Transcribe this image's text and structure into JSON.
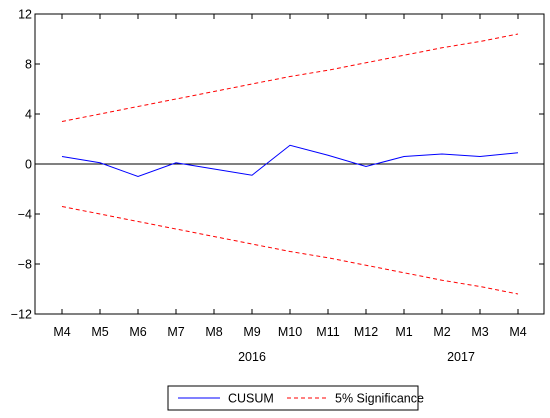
{
  "chart_data": {
    "type": "line",
    "x": [
      "M4",
      "M5",
      "M6",
      "M7",
      "M8",
      "M9",
      "M10",
      "M11",
      "M12",
      "M1",
      "M2",
      "M3",
      "M4"
    ],
    "year_labels": [
      {
        "label": "2016",
        "at_index": 5
      },
      {
        "label": "2017",
        "at_index": 10.5
      }
    ],
    "yticks": [
      12,
      8,
      4,
      0,
      -4,
      -8,
      -12
    ],
    "ylim": [
      -12,
      12
    ],
    "series": [
      {
        "name": "CUSUM",
        "color": "#0000ff",
        "dash": "solid",
        "values": [
          0.6,
          0.1,
          -1.0,
          0.1,
          -0.4,
          -0.9,
          1.5,
          0.7,
          -0.2,
          0.6,
          0.8,
          0.6,
          0.9
        ]
      },
      {
        "name": "5% Significance",
        "color": "#ff0000",
        "dash": "dashed",
        "values": [
          3.4,
          4.0,
          4.6,
          5.2,
          5.8,
          6.4,
          7.0,
          7.5,
          8.1,
          8.7,
          9.3,
          9.8,
          10.4
        ]
      },
      {
        "name": "",
        "color": "#ff0000",
        "dash": "dashed",
        "values": [
          -3.4,
          -4.0,
          -4.6,
          -5.2,
          -5.8,
          -6.4,
          -7.0,
          -7.5,
          -8.1,
          -8.7,
          -9.3,
          -9.8,
          -10.4
        ]
      }
    ],
    "zero_line": true,
    "grid": false,
    "legend": {
      "placement": "bottom-center",
      "entries": [
        "CUSUM",
        "5% Significance"
      ]
    }
  }
}
